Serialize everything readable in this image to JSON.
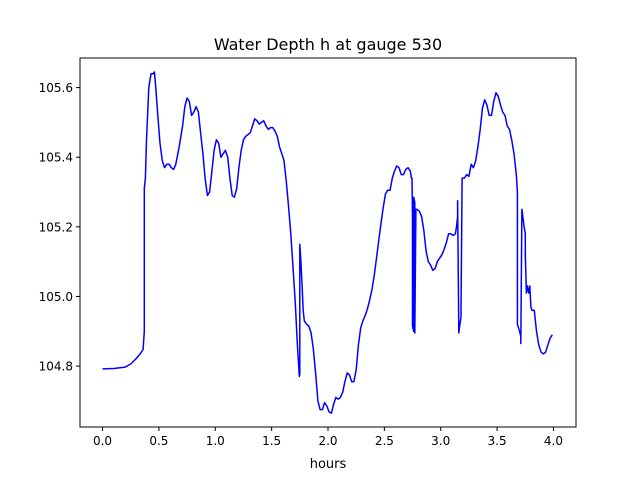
{
  "chart_data": {
    "type": "line",
    "title": "Water Depth h at gauge 530",
    "xlabel": "hours",
    "ylabel": "",
    "xlim": [
      -0.2,
      4.2
    ],
    "ylim": [
      104.625,
      105.685
    ],
    "xticks": [
      0.0,
      0.5,
      1.0,
      1.5,
      2.0,
      2.5,
      3.0,
      3.5,
      4.0
    ],
    "xtick_labels": [
      "0.0",
      "0.5",
      "1.0",
      "1.5",
      "2.0",
      "2.5",
      "3.0",
      "3.5",
      "4.0"
    ],
    "yticks": [
      104.8,
      105.0,
      105.2,
      105.4,
      105.6
    ],
    "ytick_labels": [
      "104.8",
      "105.0",
      "105.2",
      "105.4",
      "105.6"
    ],
    "grid": false,
    "legend": "none",
    "series": [
      {
        "color": "#0000ff",
        "x": [
          0.0,
          0.1,
          0.2,
          0.25,
          0.3,
          0.34,
          0.36,
          0.37,
          0.37,
          0.38,
          0.39,
          0.41,
          0.43,
          0.45,
          0.46,
          0.47,
          0.49,
          0.51,
          0.53,
          0.55,
          0.57,
          0.59,
          0.61,
          0.63,
          0.65,
          0.68,
          0.71,
          0.73,
          0.75,
          0.77,
          0.79,
          0.81,
          0.83,
          0.85,
          0.87,
          0.89,
          0.91,
          0.93,
          0.95,
          0.97,
          0.99,
          1.01,
          1.03,
          1.05,
          1.07,
          1.09,
          1.11,
          1.13,
          1.15,
          1.17,
          1.19,
          1.21,
          1.23,
          1.25,
          1.27,
          1.29,
          1.31,
          1.33,
          1.35,
          1.37,
          1.39,
          1.41,
          1.43,
          1.45,
          1.47,
          1.49,
          1.51,
          1.53,
          1.55,
          1.57,
          1.59,
          1.61,
          1.63,
          1.65,
          1.67,
          1.69,
          1.71,
          1.73,
          1.74,
          1.745,
          1.75,
          1.75,
          1.76,
          1.77,
          1.78,
          1.79,
          1.81,
          1.83,
          1.85,
          1.87,
          1.89,
          1.91,
          1.93,
          1.95,
          1.97,
          1.99,
          2.01,
          2.03,
          2.05,
          2.07,
          2.09,
          2.11,
          2.13,
          2.15,
          2.17,
          2.19,
          2.21,
          2.23,
          2.25,
          2.27,
          2.29,
          2.31,
          2.33,
          2.35,
          2.37,
          2.39,
          2.41,
          2.43,
          2.45,
          2.47,
          2.49,
          2.51,
          2.53,
          2.55,
          2.57,
          2.59,
          2.61,
          2.63,
          2.65,
          2.67,
          2.69,
          2.71,
          2.73,
          2.74,
          2.745,
          2.75,
          2.75,
          2.76,
          2.76,
          2.77,
          2.77,
          2.78,
          2.79,
          2.81,
          2.83,
          2.85,
          2.87,
          2.89,
          2.91,
          2.93,
          2.95,
          2.97,
          2.99,
          3.01,
          3.03,
          3.05,
          3.07,
          3.09,
          3.11,
          3.13,
          3.14,
          3.15,
          3.15,
          3.16,
          3.17,
          3.18,
          3.18,
          3.19,
          3.21,
          3.23,
          3.25,
          3.27,
          3.29,
          3.31,
          3.33,
          3.35,
          3.37,
          3.39,
          3.41,
          3.43,
          3.45,
          3.47,
          3.49,
          3.51,
          3.53,
          3.55,
          3.57,
          3.59,
          3.61,
          3.63,
          3.65,
          3.67,
          3.68,
          3.68,
          3.69,
          3.7,
          3.71,
          3.71,
          3.72,
          3.73,
          3.74,
          3.75,
          3.75,
          3.76,
          3.77,
          3.78,
          3.79,
          3.8,
          3.81,
          3.83,
          3.85,
          3.87,
          3.89,
          3.91,
          3.93,
          3.95,
          3.97,
          3.99
        ],
        "y": [
          104.792,
          104.793,
          104.797,
          104.806,
          104.822,
          104.838,
          104.848,
          104.9,
          105.31,
          105.34,
          105.45,
          105.6,
          105.64,
          105.64,
          105.645,
          105.61,
          105.52,
          105.44,
          105.39,
          105.37,
          105.38,
          105.38,
          105.37,
          105.365,
          105.38,
          105.43,
          105.49,
          105.545,
          105.57,
          105.56,
          105.52,
          105.53,
          105.545,
          105.53,
          105.47,
          105.41,
          105.34,
          105.29,
          105.3,
          105.36,
          105.42,
          105.45,
          105.44,
          105.4,
          105.41,
          105.42,
          105.4,
          105.34,
          105.29,
          105.285,
          105.31,
          105.37,
          105.42,
          105.45,
          105.46,
          105.465,
          105.47,
          105.49,
          105.51,
          105.505,
          105.495,
          105.5,
          105.505,
          105.49,
          105.48,
          105.485,
          105.485,
          105.475,
          105.46,
          105.43,
          105.41,
          105.39,
          105.33,
          105.26,
          105.18,
          105.08,
          104.98,
          104.85,
          104.8,
          104.77,
          104.776,
          105.15,
          105.1,
          105.03,
          104.96,
          104.93,
          104.92,
          104.915,
          104.895,
          104.85,
          104.78,
          104.7,
          104.675,
          104.675,
          104.695,
          104.685,
          104.668,
          104.665,
          104.69,
          104.71,
          104.705,
          104.71,
          104.725,
          104.755,
          104.78,
          104.775,
          104.755,
          104.755,
          104.79,
          104.86,
          104.91,
          104.93,
          104.945,
          104.965,
          104.99,
          105.02,
          105.06,
          105.11,
          105.16,
          105.21,
          105.255,
          105.295,
          105.305,
          105.305,
          105.34,
          105.36,
          105.375,
          105.37,
          105.35,
          105.35,
          105.365,
          105.37,
          105.36,
          105.34,
          105.34,
          105.23,
          104.915,
          104.9,
          105.285,
          105.27,
          104.895,
          105.25,
          105.25,
          105.245,
          105.23,
          105.19,
          105.13,
          105.1,
          105.09,
          105.075,
          105.08,
          105.1,
          105.11,
          105.12,
          105.135,
          105.155,
          105.18,
          105.18,
          105.175,
          105.18,
          105.2,
          105.23,
          105.275,
          104.895,
          104.92,
          104.94,
          104.955,
          105.34,
          105.34,
          105.35,
          105.345,
          105.38,
          105.37,
          105.39,
          105.43,
          105.48,
          105.54,
          105.565,
          105.55,
          105.52,
          105.52,
          105.56,
          105.585,
          105.575,
          105.55,
          105.53,
          105.52,
          105.49,
          105.48,
          105.45,
          105.41,
          105.35,
          105.3,
          104.92,
          104.91,
          104.9,
          104.885,
          104.865,
          105.25,
          105.225,
          105.2,
          105.18,
          105.12,
          105.01,
          105.03,
          105.01,
          105.03,
          104.97,
          104.96,
          104.96,
          104.9,
          104.86,
          104.84,
          104.835,
          104.84,
          104.86,
          104.88,
          104.89
        ]
      }
    ]
  }
}
